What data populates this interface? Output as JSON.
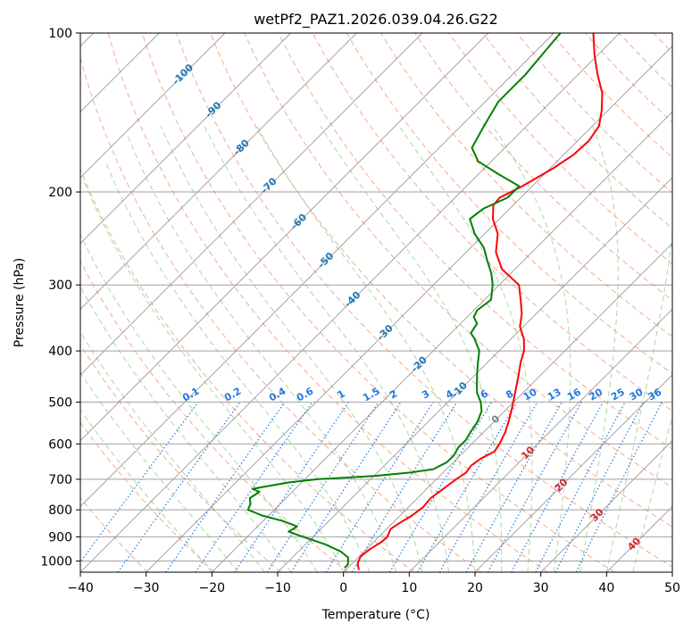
{
  "chart_data": {
    "type": "line",
    "title": "wetPf2_PAZ1.2026.039.04.26.G22",
    "xlabel": "Temperature (°C)",
    "ylabel": "Pressure (hPa)",
    "xlim": [
      -40,
      50
    ],
    "ylim": [
      1050,
      100
    ],
    "y_scale": "log",
    "x_ticks": [
      -40,
      -30,
      -20,
      -10,
      0,
      10,
      20,
      30,
      40,
      50
    ],
    "x_tick_labels": [
      "−40",
      "−30",
      "−20",
      "−10",
      "0",
      "10",
      "20",
      "30",
      "40",
      "50"
    ],
    "y_ticks": [
      100,
      200,
      300,
      400,
      500,
      600,
      700,
      800,
      900,
      1000
    ],
    "y_tick_labels": [
      "100",
      "200",
      "300",
      "400",
      "500",
      "600",
      "700",
      "800",
      "900",
      "1000"
    ],
    "grid": true,
    "skew": 1.0,
    "series": [
      {
        "color": "#ff0000",
        "points": [
          [
            1040,
            2
          ],
          [
            1010,
            0.8
          ],
          [
            980,
            0.2
          ],
          [
            950,
            0.5
          ],
          [
            920,
            1.2
          ],
          [
            900,
            1.3
          ],
          [
            870,
            0.6
          ],
          [
            850,
            1.0
          ],
          [
            820,
            1.8
          ],
          [
            790,
            2.2
          ],
          [
            760,
            2.0
          ],
          [
            730,
            2.5
          ],
          [
            700,
            3.0
          ],
          [
            680,
            3.5
          ],
          [
            660,
            3.2
          ],
          [
            640,
            3.6
          ],
          [
            620,
            4.6
          ],
          [
            600,
            4.2
          ],
          [
            570,
            3.3
          ],
          [
            540,
            2.0
          ],
          [
            510,
            0.5
          ],
          [
            480,
            -1.2
          ],
          [
            450,
            -3.0
          ],
          [
            420,
            -5.0
          ],
          [
            400,
            -6.2
          ],
          [
            380,
            -8.0
          ],
          [
            360,
            -10.5
          ],
          [
            340,
            -12.2
          ],
          [
            320,
            -14.5
          ],
          [
            300,
            -17.0
          ],
          [
            280,
            -22.0
          ],
          [
            260,
            -25.5
          ],
          [
            240,
            -28.0
          ],
          [
            225,
            -31.0
          ],
          [
            212,
            -33.0
          ],
          [
            205,
            -33.2
          ],
          [
            195,
            -31.5
          ],
          [
            180,
            -29.5
          ],
          [
            170,
            -28.5
          ],
          [
            160,
            -28.3
          ],
          [
            150,
            -29.0
          ],
          [
            140,
            -31.0
          ],
          [
            130,
            -33.5
          ],
          [
            120,
            -37.0
          ],
          [
            110,
            -40.5
          ],
          [
            100,
            -44.0
          ]
        ]
      },
      {
        "color": "#008000",
        "points": [
          [
            1030,
            -0.5
          ],
          [
            1015,
            -0.5
          ],
          [
            1000,
            -1.0
          ],
          [
            985,
            -1.5
          ],
          [
            960,
            -3.5
          ],
          [
            930,
            -7.0
          ],
          [
            900,
            -11.5
          ],
          [
            880,
            -14.5
          ],
          [
            860,
            -14.0
          ],
          [
            840,
            -17.0
          ],
          [
            820,
            -21.0
          ],
          [
            800,
            -24.0
          ],
          [
            780,
            -24.5
          ],
          [
            760,
            -25.5
          ],
          [
            740,
            -25.0
          ],
          [
            730,
            -26.5
          ],
          [
            710,
            -22.0
          ],
          [
            700,
            -18.0
          ],
          [
            690,
            -10.0
          ],
          [
            680,
            -5.0
          ],
          [
            670,
            -2.0
          ],
          [
            650,
            -1.0
          ],
          [
            630,
            -1.0
          ],
          [
            610,
            -1.5
          ],
          [
            590,
            -1.5
          ],
          [
            570,
            -2.0
          ],
          [
            545,
            -2.5
          ],
          [
            520,
            -3.5
          ],
          [
            500,
            -5.0
          ],
          [
            480,
            -7.0
          ],
          [
            460,
            -8.5
          ],
          [
            440,
            -10.0
          ],
          [
            420,
            -11.5
          ],
          [
            400,
            -13.0
          ],
          [
            380,
            -15.5
          ],
          [
            370,
            -17.0
          ],
          [
            355,
            -17.5
          ],
          [
            345,
            -19.0
          ],
          [
            335,
            -19.5
          ],
          [
            320,
            -19.0
          ],
          [
            300,
            -21.0
          ],
          [
            285,
            -23.0
          ],
          [
            270,
            -25.5
          ],
          [
            255,
            -28.0
          ],
          [
            240,
            -31.5
          ],
          [
            225,
            -34.5
          ],
          [
            215,
            -34.0
          ],
          [
            205,
            -32.0
          ],
          [
            195,
            -32.0
          ],
          [
            185,
            -37.0
          ],
          [
            175,
            -42.0
          ],
          [
            165,
            -45.0
          ],
          [
            150,
            -46.5
          ],
          [
            135,
            -48.0
          ],
          [
            120,
            -48.0
          ],
          [
            110,
            -48.5
          ],
          [
            100,
            -49.0
          ]
        ]
      }
    ],
    "isotherm_labels": [
      {
        "t": -100,
        "p": 120,
        "text": "-100"
      },
      {
        "t": -90,
        "p": 140,
        "text": "-90"
      },
      {
        "t": -80,
        "p": 165,
        "text": "-80"
      },
      {
        "t": -70,
        "p": 195,
        "text": "-70"
      },
      {
        "t": -60,
        "p": 228,
        "text": "-60"
      },
      {
        "t": -50,
        "p": 270,
        "text": "-50"
      },
      {
        "t": -40,
        "p": 320,
        "text": "-40"
      },
      {
        "t": -30,
        "p": 370,
        "text": "-30"
      },
      {
        "t": -20,
        "p": 425,
        "text": "-20"
      },
      {
        "t": -10,
        "p": 475,
        "text": "-10"
      },
      {
        "t": 0,
        "p": 540,
        "text": "0"
      },
      {
        "t": 10,
        "p": 625,
        "text": "10"
      },
      {
        "t": 20,
        "p": 720,
        "text": "20"
      },
      {
        "t": 30,
        "p": 820,
        "text": "30"
      },
      {
        "t": 40,
        "p": 930,
        "text": "40"
      }
    ],
    "mixing_ratio_labels": [
      "0.1",
      "0.2",
      "0.4",
      "0.6",
      "1",
      "1.5",
      "2",
      "3",
      "4",
      "6",
      "8",
      "10",
      "13",
      "16",
      "20",
      "25",
      "30",
      "36"
    ],
    "colors": {
      "temperature": "#ff0000",
      "dewpoint": "#008000",
      "isotherm": "#808080",
      "isobar": "#a0a0a0",
      "dry_adiabat": "#f4a582",
      "moist_adiabat": "#a6d3a0",
      "mixing_ratio": "#1f78e0",
      "label_blue": "#1f77b4",
      "label_red": "#d62728",
      "label_gray": "#7f7f7f"
    }
  }
}
